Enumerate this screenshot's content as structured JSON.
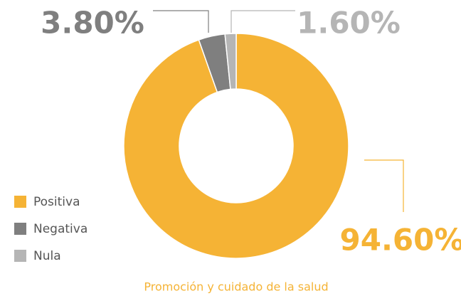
{
  "chart_data": {
    "type": "donut",
    "title": "Promoción y cuidado de la salud",
    "categories": [
      "Positiva",
      "Negativa",
      "Nula"
    ],
    "values": [
      94.6,
      3.8,
      1.6
    ],
    "value_labels": [
      "94.60%",
      "3.80%",
      "1.60%"
    ],
    "colors": [
      "#f5b335",
      "#7f7f7f",
      "#b5b5b5"
    ],
    "legend": "bottom-left"
  }
}
